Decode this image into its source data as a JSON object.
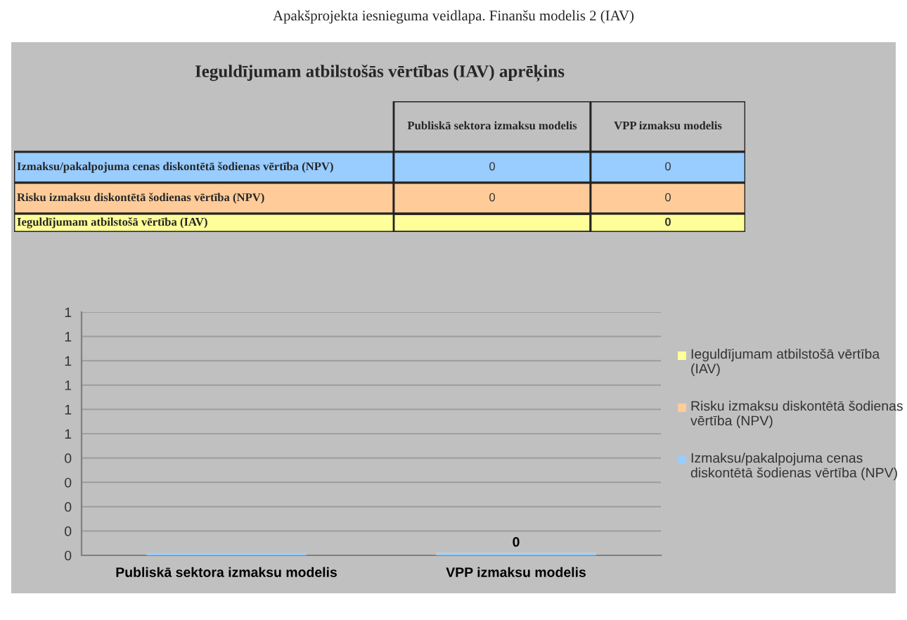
{
  "chart_data": [
    {
      "type": "heatmap",
      "title": "Apakšprojekta iesnieguma veidlapa. Finanšu modelis 2 (IAV)",
      "subtitle": "Ieguldījumam atbilstošās vērtības (IAV) aprēķins",
      "categories": [
        "Publiskā sektora izmaksu modelis",
        "VPP izmaksu modelis"
      ],
      "y_categories": [
        "Izmaksu/pakalpojuma cenas diskontētā šodienas vērtība (NPV)",
        "Risku izmaksu diskontētā šodienas vērtība (NPV)",
        "Ieguldījumam atbilstošā vērtība (IAV)"
      ],
      "cells": [
        [
          0,
          0
        ],
        [
          0,
          0
        ],
        [
          null,
          0
        ]
      ],
      "data_labels": true
    },
    {
      "type": "bar",
      "categories": [
        "Publiskā sektora izmaksu modelis",
        "VPP izmaksu modelis"
      ],
      "stacked": true,
      "series": [
        {
          "name": "Izmaksu/pakalpojuma cenas diskontētā šodienas vērtība (NPV)",
          "color": "#99ccff",
          "values": [
            0,
            0
          ]
        },
        {
          "name": "Risku izmaksu diskontētā šodienas vērtība (NPV)",
          "color": "#ffcc99",
          "values": [
            0,
            0
          ]
        },
        {
          "name": "Ieguldījumam atbilstošā vērtība (IAV)",
          "color": "#ffff99",
          "values": [
            null,
            0
          ],
          "value_labels": [
            null,
            "0"
          ]
        }
      ],
      "ylim": [
        0,
        1
      ],
      "yticks": [
        0,
        {
          "value": 0.1,
          "label": "0"
        },
        {
          "value": 0.2,
          "label": "0"
        },
        {
          "value": 0.3,
          "label": "0"
        },
        {
          "value": 0.4,
          "label": "0"
        },
        {
          "value": 0.5,
          "label": "1"
        },
        {
          "value": 0.6,
          "label": "1"
        },
        {
          "value": 0.7,
          "label": "1"
        },
        {
          "value": 0.8,
          "label": "1"
        },
        {
          "value": 0.9,
          "label": "1"
        },
        1
      ],
      "grid": "y",
      "legend": "right"
    }
  ]
}
